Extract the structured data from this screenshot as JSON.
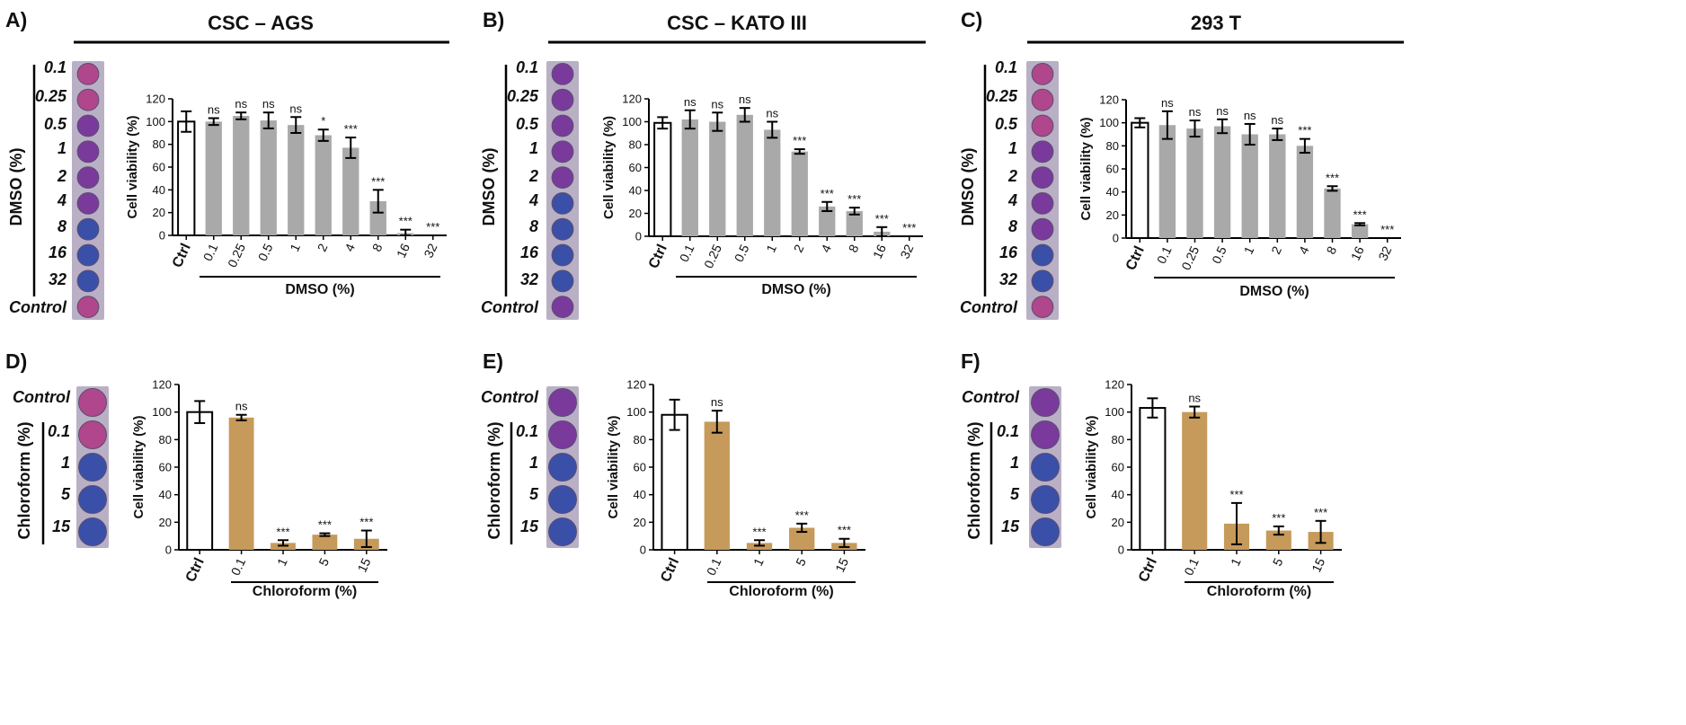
{
  "figure": {
    "panels": [
      {
        "letter": "A)",
        "title": "CSC – AGS",
        "plate_header": "",
        "plate_group_label": "DMSO (%)",
        "plate_labels": [
          "0.1",
          "0.25",
          "0.5",
          "1",
          "2",
          "4",
          "8",
          "16",
          "32",
          "Control"
        ]
      },
      {
        "letter": "B)",
        "title": "CSC – KATO III",
        "plate_header": "",
        "plate_group_label": "DMSO (%)",
        "plate_labels": [
          "0.1",
          "0.25",
          "0.5",
          "1",
          "2",
          "4",
          "8",
          "16",
          "32",
          "Control"
        ]
      },
      {
        "letter": "C)",
        "title": "293 T",
        "plate_header": "",
        "plate_group_label": "DMSO (%)",
        "plate_labels": [
          "0.1",
          "0.25",
          "0.5",
          "1",
          "2",
          "4",
          "8",
          "16",
          "32",
          "Control"
        ]
      },
      {
        "letter": "D)",
        "title": "",
        "plate_header": "Control",
        "plate_group_label": "Chloroform (%)",
        "plate_labels": [
          "0.1",
          "1",
          "5",
          "15"
        ]
      },
      {
        "letter": "E)",
        "title": "",
        "plate_header": "Control",
        "plate_group_label": "Chloroform (%)",
        "plate_labels": [
          "0.1",
          "1",
          "5",
          "15"
        ]
      },
      {
        "letter": "F)",
        "title": "",
        "plate_header": "Control",
        "plate_group_label": "Chloroform (%)",
        "plate_labels": [
          "0.1",
          "1",
          "5",
          "15"
        ]
      }
    ],
    "colors": {
      "control_bar": "#ffffff",
      "dmso_bar": "#a9a9a9",
      "chloroform_bar": "#c69a5a",
      "plate_pink": "#b0468c",
      "plate_purple": "#7a3a9c",
      "plate_blue": "#3a4fa8"
    }
  },
  "chart_data": [
    {
      "id": "A",
      "type": "bar",
      "ylabel": "Cell viability (%)",
      "xlabel": "DMSO (%)",
      "ylim": [
        0,
        120
      ],
      "yticks": [
        "0",
        "20",
        "40",
        "60",
        "80",
        "100",
        "120"
      ],
      "categories": [
        "Ctrl",
        "0.1",
        "0.25",
        "0.5",
        "1",
        "2",
        "4",
        "8",
        "16",
        "32"
      ],
      "values": [
        100,
        100,
        105,
        101,
        97,
        88,
        77,
        30,
        2,
        0
      ],
      "errors": [
        9,
        3,
        3,
        7,
        7,
        5,
        9,
        10,
        3,
        0
      ],
      "significance": [
        "",
        "ns",
        "ns",
        "ns",
        "ns",
        "*",
        "***",
        "***",
        "***",
        "***"
      ]
    },
    {
      "id": "B",
      "type": "bar",
      "ylabel": "Cell viability (%)",
      "xlabel": "DMSO (%)",
      "ylim": [
        0,
        120
      ],
      "yticks": [
        "0",
        "20",
        "40",
        "60",
        "80",
        "100",
        "120"
      ],
      "categories": [
        "Ctrl",
        "0.1",
        "0.25",
        "0.5",
        "1",
        "2",
        "4",
        "8",
        "16",
        "32"
      ],
      "values": [
        99,
        102,
        100,
        106,
        93,
        74,
        26,
        22,
        4,
        0
      ],
      "errors": [
        5,
        8,
        8,
        6,
        7,
        2,
        4,
        3,
        4,
        0
      ],
      "significance": [
        "",
        "ns",
        "ns",
        "ns",
        "ns",
        "***",
        "***",
        "***",
        "***",
        "***"
      ]
    },
    {
      "id": "C",
      "type": "bar",
      "ylabel": "Cell viability (%)",
      "xlabel": "DMSO (%)",
      "ylim": [
        0,
        120
      ],
      "yticks": [
        "0",
        "20",
        "40",
        "60",
        "80",
        "100",
        "120"
      ],
      "categories": [
        "Ctrl",
        "0.1",
        "0.25",
        "0.5",
        "1",
        "2",
        "4",
        "8",
        "16",
        "32"
      ],
      "values": [
        100,
        98,
        95,
        97,
        90,
        90,
        80,
        43,
        12,
        0
      ],
      "errors": [
        4,
        12,
        7,
        6,
        9,
        5,
        6,
        2,
        1,
        0
      ],
      "significance": [
        "",
        "ns",
        "ns",
        "ns",
        "ns",
        "ns",
        "***",
        "***",
        "***",
        "***"
      ]
    },
    {
      "id": "D",
      "type": "bar",
      "ylabel": "Cell viability (%)",
      "xlabel": "Chloroform (%)",
      "ylim": [
        0,
        120
      ],
      "yticks": [
        "0",
        "20",
        "40",
        "60",
        "80",
        "100",
        "120"
      ],
      "categories": [
        "Ctrl",
        "0.1",
        "1",
        "5",
        "15"
      ],
      "values": [
        100,
        96,
        5,
        11,
        8
      ],
      "errors": [
        8,
        2,
        2,
        1,
        6
      ],
      "significance": [
        "",
        "ns",
        "***",
        "***",
        "***"
      ]
    },
    {
      "id": "E",
      "type": "bar",
      "ylabel": "Cell viability (%)",
      "xlabel": "Chloroform (%)",
      "ylim": [
        0,
        120
      ],
      "yticks": [
        "0",
        "20",
        "40",
        "60",
        "80",
        "100",
        "120"
      ],
      "categories": [
        "Ctrl",
        "0.1",
        "1",
        "5",
        "15"
      ],
      "values": [
        98,
        93,
        5,
        16,
        5
      ],
      "errors": [
        11,
        8,
        2,
        3,
        3
      ],
      "significance": [
        "",
        "ns",
        "***",
        "***",
        "***"
      ]
    },
    {
      "id": "F",
      "type": "bar",
      "ylabel": "Cell viability (%)",
      "xlabel": "Chloroform (%)",
      "ylim": [
        0,
        120
      ],
      "yticks": [
        "0",
        "20",
        "40",
        "60",
        "80",
        "100",
        "120"
      ],
      "categories": [
        "Ctrl",
        "0.1",
        "1",
        "5",
        "15"
      ],
      "values": [
        103,
        100,
        19,
        14,
        13
      ],
      "errors": [
        7,
        4,
        15,
        3,
        8
      ],
      "significance": [
        "",
        "ns",
        "***",
        "***",
        "***"
      ]
    }
  ]
}
